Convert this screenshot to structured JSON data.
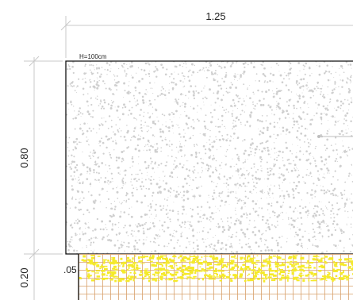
{
  "dimensions": {
    "top_width": "1.25",
    "left_height_upper": "0.80",
    "left_height_lower": "0.20",
    "inset_offset": ".05"
  },
  "block": {
    "note": "H=100cm"
  },
  "colors": {
    "dimension_line": "#c9c9c9",
    "block_outline": "#111111",
    "speckle": "#cfcfcf",
    "gravel_yellow": "#f5ea2a",
    "mesh_orange": "#d9a06a"
  }
}
